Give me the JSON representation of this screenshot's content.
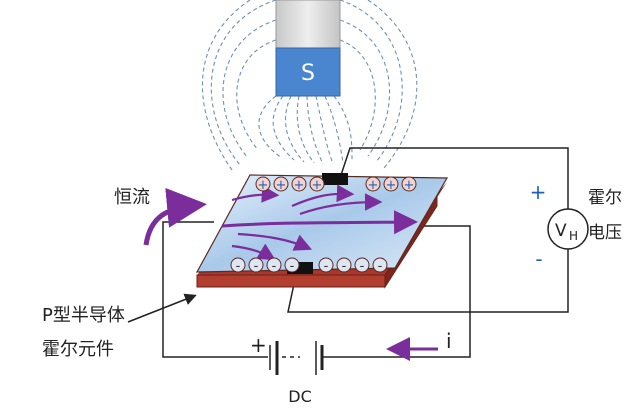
{
  "magnet": {
    "pole_label": "S",
    "body_color": "#d9d9d9",
    "pole_color": "#4a86cf"
  },
  "labels": {
    "constant_current": "恒流",
    "hall_voltage_line1": "霍尔",
    "hall_voltage_line2": "电压",
    "voltmeter_v": "V",
    "voltmeter_sub": "H",
    "plus_right": "+",
    "minus_right": "-",
    "element_line1": "P型半导体",
    "element_line2": "霍尔元件",
    "battery_plus": "+",
    "battery_label": "DC",
    "current_symbol": "i"
  },
  "charges": {
    "top_row": [
      "+",
      "+",
      "+",
      "+",
      "+",
      "+",
      "+",
      "+"
    ],
    "bottom_row": [
      "-",
      "-",
      "-",
      "-",
      "-",
      "-",
      "-",
      "-"
    ]
  },
  "colors": {
    "arrow_purple": "#7b2d9b",
    "plate_edge": "#a9372a",
    "plate_top": "#bcd6ee",
    "plus_sign": "#1f62b5",
    "wire": "#222222"
  }
}
